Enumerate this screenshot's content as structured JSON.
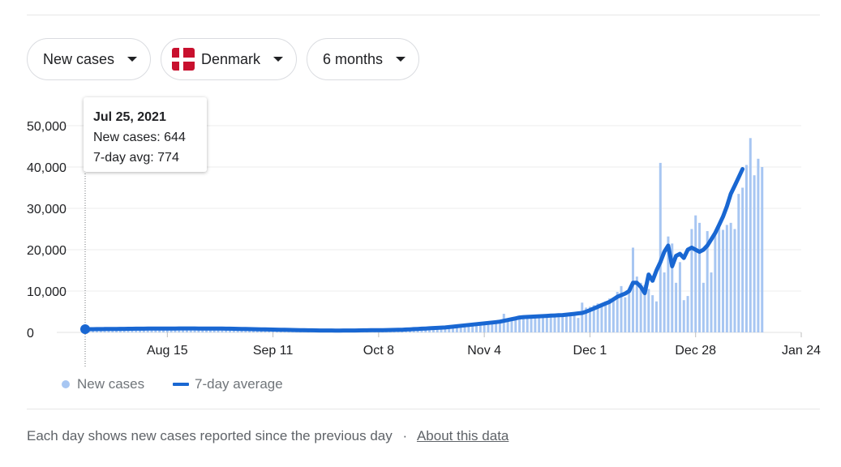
{
  "controls": {
    "metric": "New cases",
    "country": "Denmark",
    "range": "6 months"
  },
  "tooltip": {
    "date": "Jul 25, 2021",
    "new_cases": "New cases: 644",
    "avg": "7-day avg: 774"
  },
  "legend": {
    "new_cases": "New cases",
    "avg": "7-day average"
  },
  "footer": {
    "text": "Each day shows new cases reported since the previous day",
    "separator": "·",
    "link": "About this data"
  },
  "chart_data": {
    "type": "bar",
    "x_start": "2021-07-25",
    "x_end": "2022-01-24",
    "xticks": [
      "Aug 15",
      "Sep 11",
      "Oct 8",
      "Nov 4",
      "Dec 1",
      "Dec 28",
      "Jan 24"
    ],
    "yticks": [
      "0",
      "10,000",
      "20,000",
      "30,000",
      "40,000",
      "50,000"
    ],
    "ylim": [
      0,
      50000
    ],
    "grid": true,
    "legend_position": "bottom-left",
    "series": [
      {
        "name": "New cases",
        "type": "bar",
        "color": "#a7c6f2",
        "values": [
          644,
          700,
          750,
          800,
          820,
          850,
          870,
          880,
          900,
          920,
          900,
          880,
          860,
          870,
          880,
          900,
          920,
          940,
          950,
          960,
          970,
          960,
          950,
          940,
          930,
          920,
          930,
          940,
          950,
          960,
          950,
          940,
          930,
          920,
          910,
          900,
          890,
          880,
          870,
          860,
          850,
          800,
          750,
          700,
          650,
          600,
          560,
          520,
          500,
          480,
          460,
          440,
          420,
          400,
          390,
          380,
          370,
          360,
          350,
          360,
          370,
          380,
          390,
          400,
          410,
          420,
          430,
          440,
          450,
          460,
          470,
          480,
          490,
          500,
          510,
          520,
          530,
          540,
          550,
          560,
          580,
          600,
          620,
          640,
          680,
          720,
          780,
          850,
          950,
          1050,
          1150,
          1250,
          1350,
          1450,
          1550,
          1650,
          1750,
          1850,
          1950,
          2050,
          2150,
          2300,
          2450,
          2600,
          2750,
          2900,
          3000,
          4500,
          3200,
          3300,
          3400,
          3500,
          3500,
          3550,
          3600,
          3650,
          3700,
          3750,
          3800,
          3900,
          4000,
          4100,
          4200,
          4300,
          4400,
          4500,
          3500,
          7200,
          6000,
          6200,
          6600,
          7000,
          7000,
          7500,
          8200,
          7800,
          9800,
          11200,
          8500,
          10500,
          20500,
          13500,
          12000,
          11500,
          10500,
          9000,
          7500,
          41000,
          14500,
          23200,
          21500,
          12000,
          17000,
          7800,
          8800,
          25000,
          28300,
          26500,
          12000,
          24500,
          14500,
          24000,
          25500,
          24800,
          26000,
          26500,
          25000,
          33500,
          35000,
          40500,
          47000,
          38000,
          42000,
          40000
        ]
      },
      {
        "name": "7-day average",
        "type": "line",
        "color": "#1967d2",
        "values": [
          774,
          780,
          790,
          800,
          810,
          820,
          830,
          840,
          850,
          860,
          870,
          880,
          890,
          900,
          905,
          910,
          915,
          920,
          925,
          930,
          935,
          940,
          945,
          950,
          955,
          960,
          960,
          960,
          955,
          950,
          945,
          940,
          935,
          930,
          925,
          920,
          910,
          900,
          880,
          860,
          840,
          820,
          800,
          780,
          760,
          740,
          720,
          700,
          680,
          660,
          640,
          620,
          600,
          580,
          560,
          545,
          530,
          515,
          500,
          490,
          480,
          475,
          470,
          465,
          460,
          460,
          465,
          470,
          475,
          480,
          490,
          500,
          510,
          520,
          530,
          540,
          555,
          570,
          585,
          600,
          620,
          650,
          700,
          750,
          800,
          850,
          900,
          950,
          1000,
          1050,
          1100,
          1150,
          1200,
          1300,
          1400,
          1500,
          1600,
          1700,
          1800,
          1900,
          2000,
          2100,
          2200,
          2300,
          2400,
          2500,
          2600,
          2800,
          3000,
          3200,
          3400,
          3600,
          3700,
          3750,
          3800,
          3850,
          3900,
          3950,
          4000,
          4050,
          4100,
          4150,
          4200,
          4300,
          4400,
          4500,
          4600,
          4700,
          5000,
          5400,
          5800,
          6200,
          6600,
          7000,
          7400,
          8000,
          8600,
          9000,
          9400,
          10000,
          12000,
          12000,
          11000,
          9500,
          14000,
          12500,
          15000,
          17000,
          19500,
          21000,
          16000,
          18500,
          19000,
          18000,
          20000,
          20500,
          20000,
          19500,
          20000,
          21000,
          22500,
          24000,
          26000,
          28000,
          30500,
          33500,
          35500,
          37500,
          39500
        ]
      }
    ]
  }
}
